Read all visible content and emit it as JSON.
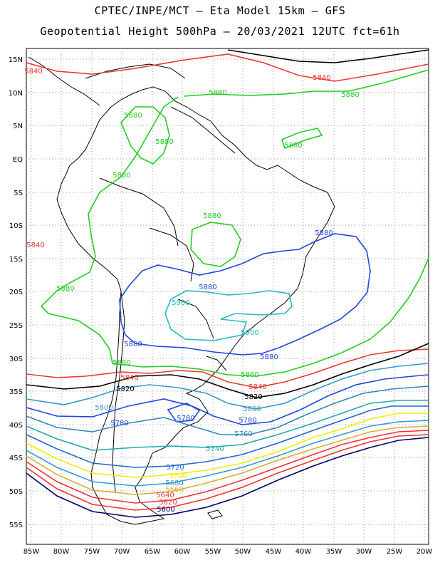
{
  "title_line1": "CPTEC/INPE/MCT –  Eta Model 15km – GFS",
  "title_line2": "Geopotential Height 500hPa – 20/03/2021 12UTC fct=61h",
  "lat_labels": [
    "15N",
    "10N",
    "5N",
    "EQ",
    "5S",
    "10S",
    "15S",
    "20S",
    "25S",
    "30S",
    "35S",
    "40S",
    "45S",
    "50S",
    "55S"
  ],
  "lon_labels": [
    "85W",
    "80W",
    "75W",
    "70W",
    "65W",
    "60W",
    "55W",
    "50W",
    "45W",
    "40W",
    "35W",
    "30W",
    "25W",
    "20W"
  ],
  "colors": {
    "5880": "#22cc22",
    "5840": "#ee3333",
    "5820": "#000000",
    "5900": "#22bbbb",
    "5860": "#22cc22",
    "5800": "#3399cc",
    "5780": "#2244dd",
    "5760": "#3388bb",
    "5740": "#22aaaa",
    "5720": "#2266cc",
    "5700": "#eeee00",
    "5680": "#3399cc",
    "5660": "#ddaa33",
    "5620": "#ee3333",
    "5600": "#000066",
    "coast": "#000000",
    "grid": "#999999"
  },
  "contour_labels": [
    {
      "text": "5840",
      "key": "5840"
    },
    {
      "text": "5840",
      "key": "5840"
    },
    {
      "text": "5840",
      "key": "5840"
    },
    {
      "text": "5880",
      "key": "5880"
    },
    {
      "text": "5880",
      "key": "5880"
    },
    {
      "text": "5880",
      "key": "5880"
    },
    {
      "text": "5880",
      "key": "5880"
    },
    {
      "text": "5880",
      "key": "5880"
    },
    {
      "text": "5880",
      "key": "5880"
    },
    {
      "text": "5880",
      "key": "5880"
    },
    {
      "text": "5880",
      "key": "5880"
    },
    {
      "text": "5880",
      "key": "5880"
    },
    {
      "text": "5880",
      "key": "5780"
    },
    {
      "text": "5880",
      "key": "5780"
    },
    {
      "text": "5880",
      "key": "5780"
    },
    {
      "text": "5880",
      "key": "5780"
    },
    {
      "text": "5900",
      "key": "5900"
    },
    {
      "text": "5900",
      "key": "5900"
    },
    {
      "text": "5860",
      "key": "5860"
    },
    {
      "text": "5840",
      "key": "5840"
    },
    {
      "text": "5840",
      "key": "5840"
    },
    {
      "text": "5820",
      "key": "5820"
    },
    {
      "text": "5820",
      "key": "5820"
    },
    {
      "text": "5800",
      "key": "5800"
    },
    {
      "text": "5800",
      "key": "5800"
    },
    {
      "text": "5780",
      "key": "5780"
    },
    {
      "text": "5780",
      "key": "5780"
    },
    {
      "text": "5780",
      "key": "5780"
    },
    {
      "text": "5760",
      "key": "5760"
    },
    {
      "text": "5740",
      "key": "5740"
    },
    {
      "text": "5720",
      "key": "5720"
    },
    {
      "text": "5700",
      "key": "5700"
    },
    {
      "text": "5680",
      "key": "5680"
    },
    {
      "text": "5660",
      "key": "5660"
    },
    {
      "text": "5640",
      "key": "5840"
    },
    {
      "text": "5620",
      "key": "5620"
    },
    {
      "text": "5600",
      "key": "5600"
    }
  ]
}
